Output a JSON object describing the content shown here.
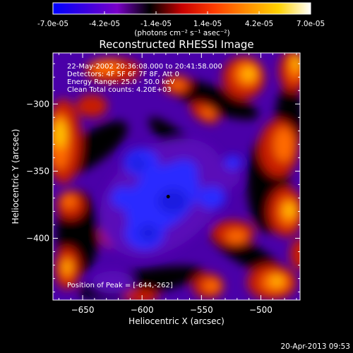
{
  "colorbar": {
    "tick_labels": [
      "-7.0e-05",
      "-4.2e-05",
      "-1.4e-05",
      "1.4e-05",
      "4.2e-05",
      "7.0e-05"
    ],
    "min": -7e-05,
    "max": 7e-05,
    "unit_label": "(photons cm⁻² s⁻¹ asec⁻²)",
    "colors": [
      "#0000ff",
      "#3a00e0",
      "#7a00c8",
      "#000000",
      "#c80000",
      "#ff3c00",
      "#ff8c00",
      "#ffd200",
      "#ffffff"
    ]
  },
  "chart_data": {
    "type": "heatmap",
    "title": "Reconstructed RHESSI Image",
    "xlabel": "Heliocentric X (arcsec)",
    "ylabel": "Heliocentric Y (arcsec)",
    "xlim": [
      -675,
      -467
    ],
    "ylim": [
      -446,
      -262
    ],
    "x_ticks": [
      -650,
      -600,
      -550,
      -500
    ],
    "y_ticks": [
      -300,
      -350,
      -400
    ],
    "x_tick_labels": [
      "−650",
      "−600",
      "−550",
      "−500"
    ],
    "y_tick_labels": [
      "−300",
      "−350",
      "−400"
    ],
    "annotations": [
      "22-May-2002 20:36:08.000 to 20:41:58.000",
      "Detectors: 4F 5F 6F 7F 8F, Att 0",
      "Energy Range: 25.0 - 50.0 keV",
      "Clean     Total counts: 4.20E+03"
    ],
    "peak_label": "Position of Peak = [-644,-262]",
    "marker_point": [
      -578,
      -369
    ]
  },
  "footer": {
    "timestamp": "20-Apr-2013 09:53"
  }
}
